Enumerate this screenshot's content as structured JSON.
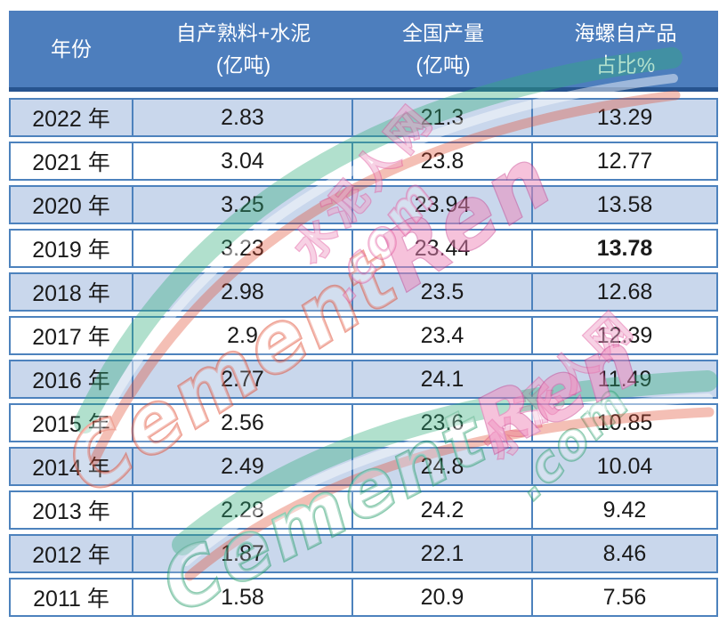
{
  "table": {
    "header": [
      {
        "line1": "年份",
        "line2": ""
      },
      {
        "line1": "自产熟料+水泥",
        "line2": "(亿吨)"
      },
      {
        "line1": "全国产量",
        "line2": "(亿吨)"
      },
      {
        "line1": "海螺自产品",
        "line2": "占比%"
      }
    ],
    "rows": [
      {
        "year": "2022 年",
        "clinker_cement": "2.83",
        "national": "21.3",
        "share": "13.29",
        "share_bold": false
      },
      {
        "year": "2021 年",
        "clinker_cement": "3.04",
        "national": "23.8",
        "share": "12.77",
        "share_bold": false
      },
      {
        "year": "2020 年",
        "clinker_cement": "3.25",
        "national": "23.94",
        "share": "13.58",
        "share_bold": false
      },
      {
        "year": "2019 年",
        "clinker_cement": "3.23",
        "national": "23.44",
        "share": "13.78",
        "share_bold": true
      },
      {
        "year": "2018 年",
        "clinker_cement": "2.98",
        "national": "23.5",
        "share": "12.68",
        "share_bold": false
      },
      {
        "year": "2017 年",
        "clinker_cement": "2.9",
        "national": "23.4",
        "share": "12.39",
        "share_bold": false
      },
      {
        "year": "2016 年",
        "clinker_cement": "2.77",
        "national": "24.1",
        "share": "11.49",
        "share_bold": false
      },
      {
        "year": "2015 年",
        "clinker_cement": "2.56",
        "national": "23.6",
        "share": "10.85",
        "share_bold": false
      },
      {
        "year": "2014 年",
        "clinker_cement": "2.49",
        "national": "24.8",
        "share": "10.04",
        "share_bold": false
      },
      {
        "year": "2013 年",
        "clinker_cement": "2.28",
        "national": "24.2",
        "share": "9.42",
        "share_bold": false
      },
      {
        "year": "2012 年",
        "clinker_cement": "1.87",
        "national": "22.1",
        "share": "8.46",
        "share_bold": false
      },
      {
        "year": "2011 年",
        "clinker_cement": "1.58",
        "national": "20.9",
        "share": "7.56",
        "share_bold": false
      }
    ]
  },
  "watermark": {
    "site_name_cn": "水泥人网",
    "site_name_en_part1": "Cement",
    "site_name_en_part2": "Ren",
    "domain_suffix": ".com"
  },
  "colors": {
    "header_bg": "#4d7ebd",
    "header_text": "#ffffff",
    "header_underline": "#27548f",
    "cell_border": "#4d82bd",
    "row_shaded_bg": "#c9d7ec",
    "row_plain_bg": "#ffffff",
    "body_text": "#1a1a1a",
    "wm_pink": "#e35a9f",
    "wm_red": "#e0492f",
    "wm_green": "#2fae7a"
  },
  "chart_data": {
    "type": "table",
    "title": "",
    "columns": [
      "年份",
      "自产熟料+水泥(亿吨)",
      "全国产量(亿吨)",
      "海螺自产品占比%"
    ],
    "rows": [
      [
        "2022 年",
        2.83,
        21.3,
        13.29
      ],
      [
        "2021 年",
        3.04,
        23.8,
        12.77
      ],
      [
        "2020 年",
        3.25,
        23.94,
        13.58
      ],
      [
        "2019 年",
        3.23,
        23.44,
        13.78
      ],
      [
        "2018 年",
        2.98,
        23.5,
        12.68
      ],
      [
        "2017 年",
        2.9,
        23.4,
        12.39
      ],
      [
        "2016 年",
        2.77,
        24.1,
        11.49
      ],
      [
        "2015 年",
        2.56,
        23.6,
        10.85
      ],
      [
        "2014 年",
        2.49,
        24.8,
        10.04
      ],
      [
        "2013 年",
        2.28,
        24.2,
        9.42
      ],
      [
        "2012 年",
        1.87,
        22.1,
        8.46
      ],
      [
        "2011 年",
        1.58,
        20.9,
        7.56
      ]
    ],
    "notes": "row 2019 share value 13.78 is bold; rows alternate light-blue / white shading"
  }
}
